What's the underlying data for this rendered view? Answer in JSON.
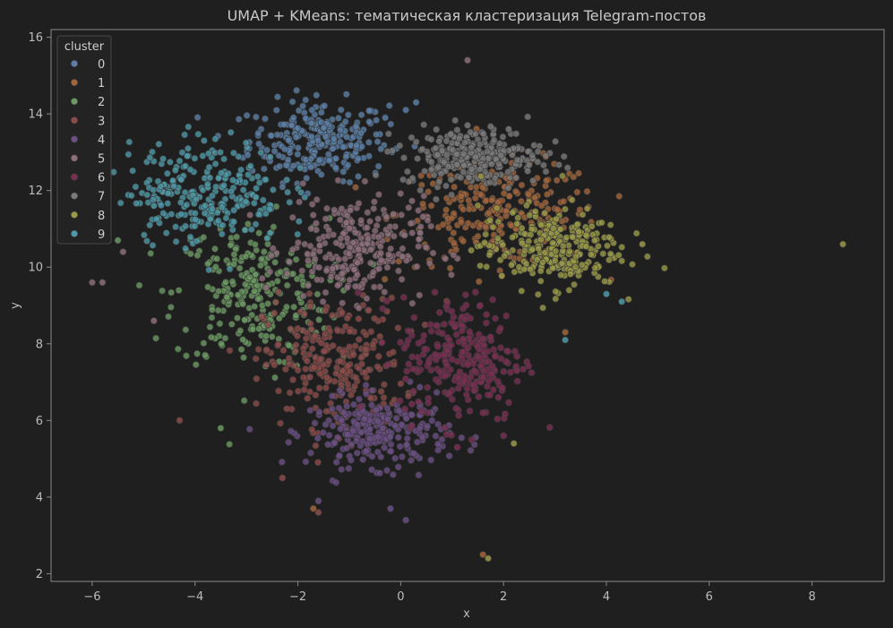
{
  "chart_data": {
    "type": "scatter",
    "title": "UMAP + KMeans: тематическая кластеризация Telegram-постов",
    "xlabel": "x",
    "ylabel": "y",
    "xlim": [
      -6.8,
      9.4
    ],
    "ylim": [
      1.8,
      16.2
    ],
    "xticks": [
      -6,
      -4,
      -2,
      0,
      2,
      4,
      6,
      8
    ],
    "xtick_labels": [
      "−6",
      "−4",
      "−2",
      "0",
      "2",
      "4",
      "6",
      "8"
    ],
    "yticks": [
      2,
      4,
      6,
      8,
      10,
      12,
      14,
      16
    ],
    "ytick_labels": [
      "2",
      "4",
      "6",
      "8",
      "10",
      "12",
      "14",
      "16"
    ],
    "grid": false,
    "background": "#1f1f1f",
    "legend": {
      "title": "cluster",
      "placement": "top-left",
      "entries": [
        "0",
        "1",
        "2",
        "3",
        "4",
        "5",
        "6",
        "7",
        "8",
        "9"
      ]
    },
    "series": [
      {
        "name": "0",
        "color": "#5b7fa6",
        "center": [
          -1.6,
          13.3
        ],
        "spread": [
          0.9,
          0.7
        ],
        "outliers": [
          [
            0.1,
            14.1
          ],
          [
            -0.3,
            13.9
          ],
          [
            0.3,
            14.3
          ]
        ]
      },
      {
        "name": "1",
        "color": "#a3653b",
        "center": [
          1.9,
          11.4
        ],
        "spread": [
          1.3,
          0.9
        ],
        "outliers": [
          [
            3.2,
            8.3
          ],
          [
            1.6,
            2.5
          ],
          [
            -1.7,
            3.7
          ]
        ]
      },
      {
        "name": "2",
        "color": "#6b9a62",
        "center": [
          -2.9,
          9.3
        ],
        "spread": [
          1.0,
          1.3
        ],
        "outliers": [
          [
            -5.5,
            10.7
          ],
          [
            -3.5,
            5.8
          ]
        ]
      },
      {
        "name": "3",
        "color": "#8c4c4a",
        "center": [
          -1.3,
          7.5
        ],
        "spread": [
          0.9,
          1.1
        ],
        "outliers": [
          [
            -4.3,
            6.0
          ],
          [
            -1.6,
            3.6
          ],
          [
            -2.3,
            4.5
          ]
        ]
      },
      {
        "name": "4",
        "color": "#6b4f85",
        "center": [
          -0.4,
          5.7
        ],
        "spread": [
          0.9,
          0.6
        ],
        "outliers": [
          [
            0.1,
            3.4
          ],
          [
            -0.2,
            3.7
          ],
          [
            -1.6,
            3.9
          ]
        ]
      },
      {
        "name": "5",
        "color": "#8e6f7c",
        "center": [
          -0.9,
          10.5
        ],
        "spread": [
          0.9,
          0.9
        ],
        "outliers": [
          [
            1.3,
            15.4
          ],
          [
            -6.0,
            9.6
          ],
          [
            -5.8,
            9.6
          ],
          [
            -5.4,
            10.4
          ],
          [
            -4.8,
            8.6
          ]
        ]
      },
      {
        "name": "6",
        "color": "#7a2f52",
        "center": [
          1.2,
          7.6
        ],
        "spread": [
          0.8,
          1.1
        ],
        "outliers": [
          [
            1.6,
            6.2
          ],
          [
            2.0,
            5.6
          ],
          [
            1.1,
            5.3
          ]
        ]
      },
      {
        "name": "7",
        "color": "#7a7a7a",
        "center": [
          1.4,
          12.9
        ],
        "spread": [
          0.9,
          0.5
        ],
        "outliers": [
          [
            1.3,
            13.7
          ],
          [
            2.1,
            13.6
          ]
        ]
      },
      {
        "name": "8",
        "color": "#9a9a48",
        "center": [
          2.9,
          10.5
        ],
        "spread": [
          0.9,
          0.7
        ],
        "outliers": [
          [
            8.6,
            10.6
          ],
          [
            1.7,
            2.4
          ],
          [
            4.7,
            10.6
          ],
          [
            2.2,
            5.4
          ]
        ]
      },
      {
        "name": "9",
        "color": "#4f9aa8",
        "center": [
          -3.8,
          12.0
        ],
        "spread": [
          1.0,
          0.9
        ],
        "outliers": [
          [
            4.3,
            9.1
          ],
          [
            4.0,
            9.3
          ],
          [
            3.2,
            8.1
          ],
          [
            -4.8,
            11.6
          ]
        ]
      }
    ]
  }
}
